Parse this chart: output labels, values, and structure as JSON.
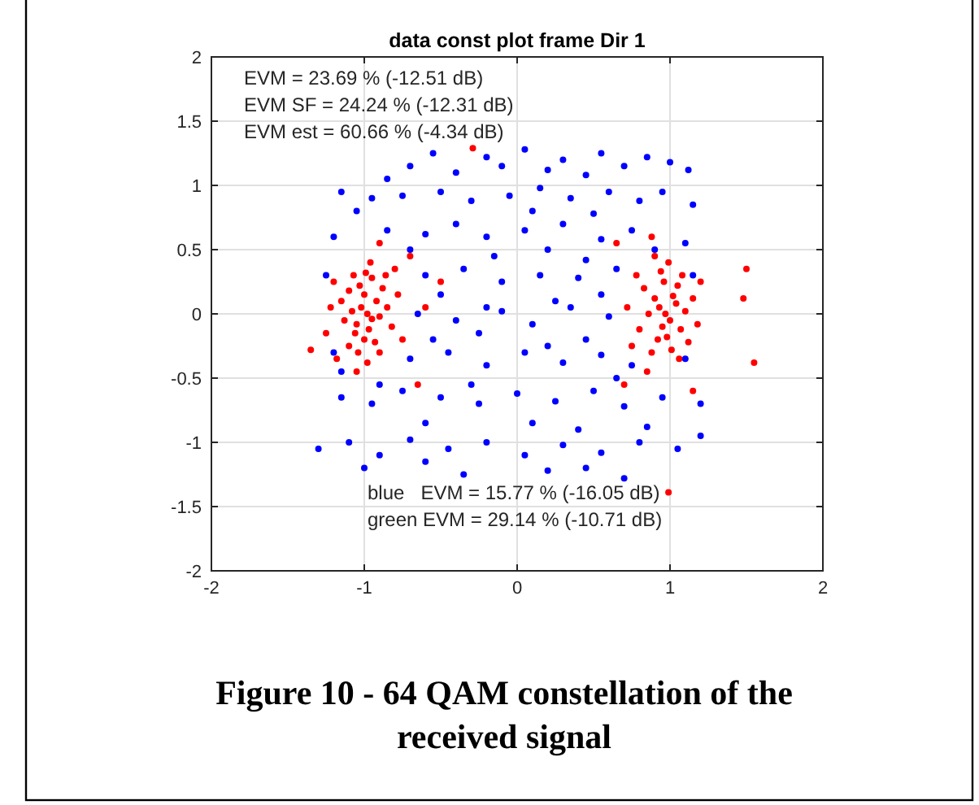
{
  "chart_data": {
    "type": "scatter",
    "title": "data const plot frame Dir 1",
    "annotations": [
      "EVM = 23.69 % (-12.51 dB)",
      "EVM SF = 24.24 % (-12.31 dB)",
      "EVM est = 60.66 % (-4.34 dB)",
      "blue   EVM = 15.77 % (-16.05 dB)",
      "green EVM = 29.14 % (-10.71 dB)",
      "Figure 10 - 64 QAM constellation of the received signal"
    ],
    "xlim": [
      -2,
      2
    ],
    "xticks": [
      -2,
      -1,
      0,
      1,
      2
    ],
    "ylim": [
      -2,
      2
    ],
    "yticks": [
      -2,
      -1.5,
      -1,
      -0.5,
      0,
      0.5,
      1,
      1.5,
      2
    ],
    "grid": true,
    "marker": "circle",
    "series": [
      {
        "color": "#0000ff",
        "x": [
          -0.55,
          -0.2,
          0.05,
          0.3,
          0.55,
          0.85,
          1.0,
          -0.85,
          -0.4,
          -0.1,
          0.2,
          0.45,
          0.7,
          1.12,
          -0.7,
          -1.15,
          -0.95,
          -0.75,
          -0.5,
          -0.3,
          -0.05,
          0.15,
          0.35,
          0.6,
          0.8,
          0.95,
          1.15,
          -1.05,
          0.1,
          0.5,
          -1.2,
          -0.85,
          -0.6,
          -0.4,
          -0.2,
          0.05,
          0.3,
          0.55,
          0.75,
          1.1,
          -0.7,
          -0.15,
          0.2,
          0.45,
          0.9,
          -1.25,
          -0.6,
          -0.35,
          -0.1,
          0.15,
          0.4,
          0.65,
          1.15,
          -0.5,
          0.25,
          0.55,
          -0.2,
          -0.65,
          -0.4,
          -0.1,
          0.1,
          0.35,
          0.6,
          -0.55,
          0.2,
          0.45,
          -0.25,
          -1.2,
          -0.7,
          -0.45,
          -0.2,
          0.05,
          0.3,
          0.55,
          0.75,
          1.1,
          -1.15,
          -0.9,
          0.65,
          -0.3,
          -1.15,
          -0.95,
          -0.75,
          -0.5,
          -0.25,
          0.0,
          0.25,
          0.5,
          0.7,
          0.95,
          1.2,
          -0.6,
          0.1,
          0.4,
          0.85,
          -1.3,
          -1.1,
          -0.9,
          -0.7,
          -0.45,
          -0.2,
          0.05,
          0.3,
          0.55,
          0.8,
          1.05,
          1.2,
          -1.0,
          -0.35,
          0.2,
          0.7,
          -0.6,
          0.45
        ],
        "values": [
          1.25,
          1.22,
          1.28,
          1.2,
          1.25,
          1.22,
          1.18,
          1.05,
          1.1,
          1.15,
          1.12,
          1.08,
          1.15,
          1.12,
          1.15,
          0.95,
          0.9,
          0.92,
          0.95,
          0.88,
          0.92,
          0.98,
          0.9,
          0.95,
          0.88,
          0.95,
          0.85,
          0.8,
          0.8,
          0.78,
          0.6,
          0.65,
          0.62,
          0.7,
          0.6,
          0.65,
          0.7,
          0.58,
          0.65,
          0.55,
          0.5,
          0.45,
          0.5,
          0.42,
          0.5,
          0.3,
          0.3,
          0.35,
          0.25,
          0.3,
          0.28,
          0.35,
          0.3,
          0.15,
          0.1,
          0.15,
          0.05,
          0.0,
          -0.05,
          0.02,
          -0.08,
          0.05,
          -0.02,
          -0.2,
          -0.25,
          -0.2,
          -0.15,
          -0.3,
          -0.35,
          -0.3,
          -0.4,
          -0.3,
          -0.38,
          -0.32,
          -0.4,
          -0.35,
          -0.45,
          -0.55,
          -0.5,
          -0.55,
          -0.65,
          -0.7,
          -0.6,
          -0.65,
          -0.7,
          -0.62,
          -0.68,
          -0.6,
          -0.72,
          -0.65,
          -0.7,
          -0.85,
          -0.85,
          -0.9,
          -0.88,
          -1.05,
          -1.0,
          -1.1,
          -0.98,
          -1.05,
          -1.0,
          -1.1,
          -1.02,
          -1.08,
          -1.0,
          -1.05,
          -0.95,
          -1.2,
          -1.25,
          -1.22,
          -1.28,
          -1.15,
          -1.2
        ]
      },
      {
        "color": "#ff0000",
        "x": [
          -0.98,
          -1.02,
          -0.95,
          -1.05,
          -0.92,
          -1.0,
          -0.97,
          -1.08,
          -0.9,
          -1.03,
          -0.95,
          -1.1,
          -0.88,
          -1.0,
          -1.06,
          -0.93,
          -0.85,
          -1.13,
          -0.99,
          -1.04,
          -0.9,
          -1.15,
          -0.82,
          -0.96,
          -1.1,
          -0.86,
          -1.2,
          -1.25,
          -0.78,
          -0.75,
          -1.35,
          -1.18,
          -0.7,
          -0.65,
          -0.9,
          -1.05,
          -1.22,
          -0.8,
          -0.5,
          -0.6,
          -0.98,
          -1.07,
          -0.29,
          0.97,
          1.0,
          0.93,
          1.04,
          0.95,
          1.02,
          0.9,
          1.07,
          0.98,
          0.92,
          1.05,
          0.96,
          1.1,
          0.86,
          1.01,
          0.88,
          1.12,
          0.94,
          1.08,
          0.83,
          1.15,
          0.8,
          1.18,
          0.99,
          0.9,
          1.06,
          0.78,
          1.2,
          0.75,
          0.72,
          1.5,
          1.48,
          1.55,
          0.7,
          1.15,
          0.88,
          0.65,
          0.85,
          0.99
        ],
        "values": [
          0,
          0.05,
          -0.04,
          -0.08,
          0.1,
          0.15,
          -0.12,
          0.02,
          -0.02,
          0.22,
          0.28,
          0.18,
          0.2,
          -0.2,
          -0.15,
          -0.22,
          0.05,
          -0.05,
          0.32,
          -0.3,
          -0.3,
          0.1,
          -0.1,
          0.4,
          -0.25,
          0.3,
          0.25,
          -0.15,
          0.15,
          -0.2,
          -0.28,
          -0.35,
          0.45,
          -0.55,
          0.55,
          -0.45,
          0.05,
          0.35,
          0.25,
          0.05,
          -0.38,
          0.3,
          1.29,
          0,
          -0.05,
          0.05,
          0.08,
          -0.1,
          0.14,
          0.12,
          -0.12,
          -0.18,
          -0.2,
          0.22,
          0.25,
          0.02,
          0.0,
          -0.28,
          -0.3,
          -0.22,
          0.33,
          0.3,
          0.2,
          0.12,
          -0.12,
          -0.08,
          0.4,
          0.45,
          -0.35,
          0.3,
          0.25,
          -0.25,
          0.05,
          0.35,
          0.12,
          -0.38,
          -0.55,
          -0.6,
          0.6,
          0.55,
          -0.45,
          -1.39
        ]
      }
    ]
  }
}
